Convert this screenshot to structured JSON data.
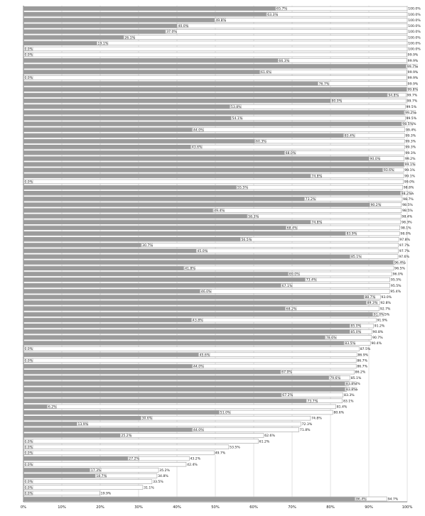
{
  "chart_data": {
    "type": "bar",
    "xlim": [
      0,
      100
    ],
    "x_ticks": [
      "0%",
      "10%",
      "20%",
      "30%",
      "40%",
      "50%",
      "60%",
      "70%",
      "80%",
      "90%",
      "100%"
    ],
    "series": [
      {
        "values": [
          65.7,
          63.3,
          49.8,
          40.0,
          37.0,
          26.1,
          19.1,
          0.0,
          0,
          66.3,
          99.7,
          61.6,
          0,
          76.7,
          99.8,
          94.8,
          80.0,
          53.8,
          99.2,
          54.1,
          98.5,
          44.0,
          83.4,
          60.3,
          43.6,
          68.0,
          90.0,
          99.1,
          93.6,
          74.8,
          0,
          55.5,
          98.2,
          73.2,
          90.2,
          49.4,
          58.3,
          74.8,
          68.4,
          83.9,
          56.5,
          30.7,
          45.0,
          85.1,
          96.4,
          41.8,
          69.0,
          73.4,
          67.1,
          46.0,
          88.7,
          89.3,
          68.2,
          91.0,
          43.8,
          85.0,
          85.0,
          78.6,
          83.5,
          0.0,
          45.6,
          0.0,
          44.0,
          67.0,
          79.6,
          83.8,
          83.8,
          67.2,
          73.7,
          6.2,
          51.0,
          30.6,
          13.9,
          44.0,
          25.2,
          0.0,
          0.0,
          0.0,
          27.2,
          0.0,
          17.3,
          18.7,
          0.0,
          0.0,
          0.0,
          86.4
        ]
      },
      {
        "values": [
          100.0,
          100.0,
          100.0,
          100.0,
          100.0,
          100.0,
          100.0,
          100.0,
          99.9,
          99.9,
          99.9,
          99.9,
          99.9,
          99.9,
          99.8,
          99.7,
          99.7,
          99.5,
          99.5,
          99.5,
          99.4,
          99.4,
          99.3,
          99.3,
          99.3,
          99.3,
          99.2,
          99.2,
          99.1,
          99.1,
          99.0,
          98.8,
          98.8,
          98.7,
          98.5,
          98.5,
          98.4,
          98.3,
          98.1,
          98.0,
          97.8,
          97.7,
          97.7,
          97.6,
          96.7,
          96.5,
          96.0,
          95.5,
          95.5,
          95.4,
          93.0,
          92.8,
          92.7,
          92.5,
          91.9,
          91.2,
          90.8,
          90.7,
          90.4,
          87.5,
          86.9,
          86.7,
          86.7,
          86.2,
          85.1,
          84.8,
          84.2,
          83.3,
          83.1,
          81.4,
          80.6,
          74.8,
          72.3,
          71.8,
          62.6,
          61.2,
          53.5,
          49.7,
          43.2,
          42.4,
          35.2,
          34.8,
          33.5,
          31.1,
          19.9,
          94.7
        ]
      }
    ]
  }
}
